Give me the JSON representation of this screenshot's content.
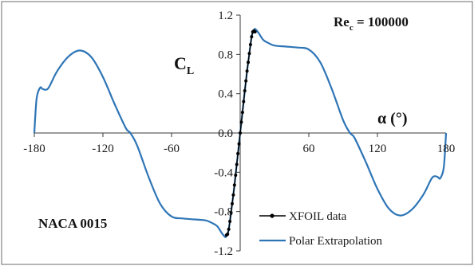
{
  "chart_data": {
    "type": "line",
    "title": "",
    "xlabel": "α (°)",
    "ylabel": "C",
    "ylabel_subscript": "L",
    "xlim": [
      -180,
      180
    ],
    "ylim": [
      -1.2,
      1.2
    ],
    "x_ticks": [
      -180,
      -120,
      -60,
      60,
      120,
      180
    ],
    "x_tick_labels": [
      "-180",
      "-120",
      "-60",
      "60",
      "120",
      "180"
    ],
    "y_ticks": [
      -1.2,
      -0.8,
      -0.4,
      0.0,
      0.4,
      0.8,
      1.2
    ],
    "y_tick_labels": [
      "-1.2",
      "-0.8",
      "-0.4",
      "0.0",
      "0.4",
      "0.8",
      "1.2"
    ],
    "grid": false,
    "legend_position": "bottom-right",
    "annotations": {
      "reynolds_main": "Re",
      "reynolds_sub": "c",
      "reynolds_value": " = 100000",
      "airfoil": "NACA 0015"
    },
    "colors": {
      "extrapolation": "#2e75b6",
      "xfoil": "#000000",
      "axis": "#3a3a3a"
    },
    "series": [
      {
        "name": "XFOIL data",
        "style": "line-with-markers",
        "x": [
          -12,
          -11,
          -10,
          -9,
          -8,
          -7,
          -6,
          -5,
          -4,
          -3,
          -2,
          -1,
          0,
          1,
          2,
          3,
          4,
          5,
          6,
          7,
          8,
          9,
          10,
          11,
          12,
          13
        ],
        "y": [
          -1.04,
          -1.03,
          -0.98,
          -0.9,
          -0.81,
          -0.72,
          -0.63,
          -0.53,
          -0.43,
          -0.32,
          -0.21,
          -0.11,
          0.0,
          0.11,
          0.21,
          0.32,
          0.43,
          0.53,
          0.63,
          0.72,
          0.81,
          0.9,
          0.98,
          1.03,
          1.04,
          1.03
        ]
      },
      {
        "name": "Polar Extrapolation",
        "style": "line",
        "x": [
          -180,
          -178,
          -175,
          -173,
          -170,
          -167,
          -160,
          -150,
          -140,
          -130,
          -120,
          -110,
          -100,
          -96,
          -90,
          -80,
          -70,
          -60,
          -50,
          -40,
          -30,
          -24,
          -20,
          -16,
          -13,
          -12,
          -11,
          -10,
          -8,
          -5,
          0,
          5,
          8,
          10,
          11,
          12,
          13,
          16,
          20,
          24,
          30,
          40,
          50,
          60,
          70,
          80,
          90,
          96,
          100,
          110,
          120,
          130,
          140,
          150,
          160,
          167,
          170,
          173,
          175,
          178,
          180
        ],
        "y": [
          0.0,
          0.35,
          0.46,
          0.45,
          0.44,
          0.47,
          0.63,
          0.78,
          0.84,
          0.77,
          0.57,
          0.3,
          0.05,
          0.0,
          -0.13,
          -0.45,
          -0.72,
          -0.85,
          -0.87,
          -0.88,
          -0.89,
          -0.92,
          -0.95,
          -1.02,
          -1.06,
          -1.04,
          -1.02,
          -0.98,
          -0.81,
          -0.53,
          0.0,
          0.53,
          0.81,
          0.98,
          1.02,
          1.04,
          1.06,
          1.02,
          0.95,
          0.92,
          0.89,
          0.88,
          0.87,
          0.85,
          0.72,
          0.45,
          0.13,
          0.0,
          -0.05,
          -0.3,
          -0.57,
          -0.77,
          -0.84,
          -0.78,
          -0.63,
          -0.47,
          -0.44,
          -0.45,
          -0.46,
          -0.35,
          0.0
        ]
      }
    ]
  }
}
